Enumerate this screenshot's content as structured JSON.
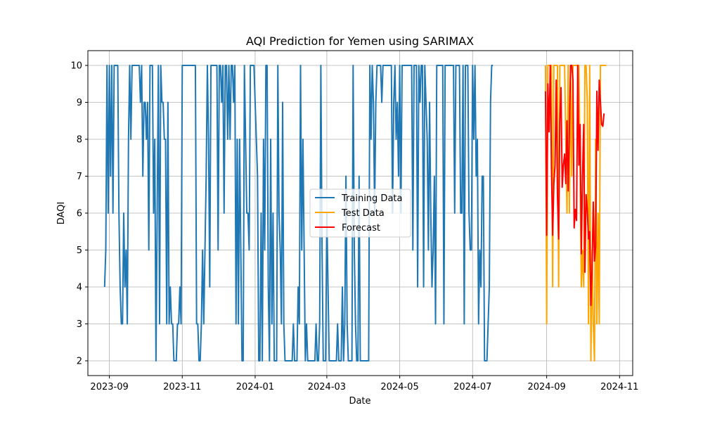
{
  "chart_data": {
    "type": "line",
    "title": "AQI Prediction for Yemen using SARIMAX",
    "xlabel": "Date",
    "ylabel": "DAQI",
    "xlim": [
      "2023-08-14",
      "2024-11-12"
    ],
    "ylim": [
      1.6,
      10.4
    ],
    "x_ticks": [
      "2023-09-01",
      "2023-11-01",
      "2024-01-01",
      "2024-03-01",
      "2024-05-01",
      "2024-07-01",
      "2024-09-01",
      "2024-11-01"
    ],
    "x_tick_labels": [
      "2023-09",
      "2023-11",
      "2024-01",
      "2024-03",
      "2024-05",
      "2024-07",
      "2024-09",
      "2024-11"
    ],
    "y_ticks": [
      2,
      3,
      4,
      5,
      6,
      7,
      8,
      9,
      10
    ],
    "y_tick_labels": [
      "2",
      "3",
      "4",
      "5",
      "6",
      "7",
      "8",
      "9",
      "10"
    ],
    "grid": true,
    "legend_position": "center",
    "series": [
      {
        "name": "Training Data",
        "color": "#1f77b4",
        "start": "2023-08-28",
        "values": [
          4,
          5,
          10,
          6,
          10,
          7,
          10,
          6,
          10,
          10,
          10,
          10,
          6,
          4,
          3,
          3,
          6,
          4,
          5,
          3,
          8,
          10,
          8,
          10,
          10,
          10,
          10,
          10,
          10,
          10,
          9,
          10,
          7,
          9,
          9,
          8,
          9,
          5,
          10,
          10,
          10,
          6,
          8,
          2,
          6,
          10,
          3,
          10,
          9,
          9,
          8,
          8,
          3,
          9,
          3,
          4,
          3,
          3,
          2,
          2,
          2,
          3,
          3,
          4,
          3,
          10,
          10,
          10,
          10,
          10,
          10,
          10,
          10,
          10,
          10,
          10,
          10,
          3,
          3,
          2,
          2,
          3,
          5,
          3,
          5,
          7,
          10,
          8,
          4,
          10,
          10,
          10,
          10,
          10,
          10,
          5,
          10,
          10,
          9,
          10,
          6,
          10,
          10,
          8,
          10,
          8,
          10,
          10,
          9,
          10,
          3,
          8,
          3,
          8,
          5,
          2,
          2,
          10,
          8,
          6,
          6,
          5,
          10,
          10,
          10,
          10,
          9,
          8,
          7,
          2,
          2,
          6,
          2,
          8,
          5,
          10,
          10,
          4,
          2,
          8,
          3,
          6,
          2,
          2,
          2,
          10,
          6,
          5,
          3,
          9,
          3,
          2,
          2,
          2,
          2,
          2,
          2,
          2,
          3,
          2,
          2,
          2,
          4,
          3,
          10,
          5,
          8,
          5,
          2,
          3,
          2,
          2,
          2,
          2,
          2,
          2,
          2,
          3,
          2,
          2,
          3,
          10,
          5,
          2,
          2,
          2,
          6,
          4,
          2,
          2,
          2,
          2,
          2,
          2,
          2,
          3,
          2,
          2,
          2,
          4,
          2,
          3,
          7,
          3,
          2,
          2,
          2,
          2,
          10,
          5,
          3,
          2,
          2,
          7,
          2,
          2,
          2,
          2,
          2,
          2,
          2,
          2,
          10,
          8,
          10,
          9,
          6,
          9,
          10,
          10,
          10,
          10,
          9,
          10,
          10,
          10,
          10,
          10,
          10,
          10,
          10,
          6,
          9,
          10,
          8,
          9,
          7,
          10,
          6,
          10,
          10,
          10,
          10,
          10,
          10,
          10,
          10,
          10,
          5,
          10,
          10,
          10,
          4,
          10,
          9,
          10,
          10,
          4,
          10,
          9,
          8,
          5,
          9,
          6,
          4,
          5,
          7,
          3,
          10,
          10,
          10,
          10,
          10,
          10,
          3,
          10,
          10,
          10,
          10,
          10,
          10,
          10,
          10,
          6,
          10,
          10,
          10,
          10,
          6,
          6,
          10,
          3,
          10,
          10,
          10,
          6,
          5,
          5,
          10,
          8,
          10,
          7,
          8,
          3,
          5,
          4,
          7,
          7,
          2,
          2,
          2,
          3,
          4,
          9,
          10,
          10
        ]
      },
      {
        "name": "Test Data",
        "color": "#ffa500",
        "start": "2024-08-31",
        "values": [
          10,
          3,
          10,
          10,
          10,
          10,
          4,
          10,
          10,
          10,
          10,
          4,
          10,
          10,
          10,
          10,
          10,
          8,
          6,
          10,
          6,
          10,
          7,
          10,
          10,
          10,
          10,
          10,
          10,
          7,
          4,
          5,
          4,
          10,
          10,
          9,
          3,
          10,
          2,
          5,
          3,
          2,
          8,
          3,
          6,
          3,
          10,
          10,
          10,
          10,
          10,
          10
        ]
      },
      {
        "name": "Forecast",
        "color": "#ff0000",
        "start": "2024-08-31",
        "values": [
          9.3,
          5.4,
          9.5,
          8.2,
          10,
          7.2,
          5.4,
          6.8,
          7.3,
          9.6,
          6.5,
          5.3,
          8.5,
          9.4,
          6.7,
          7.3,
          7.6,
          6.8,
          8.5,
          6.6,
          8.2,
          10,
          10,
          9.6,
          5.6,
          6.1,
          5.8,
          10,
          7.3,
          8.4,
          4.9,
          7,
          8.4,
          4.4,
          6.5,
          6.1,
          5.3,
          5.5,
          3.5,
          4.5,
          6.3,
          4.7,
          5.1,
          9.3,
          7.7,
          9.6,
          9,
          8.4,
          8.35,
          8.7
        ]
      }
    ]
  }
}
